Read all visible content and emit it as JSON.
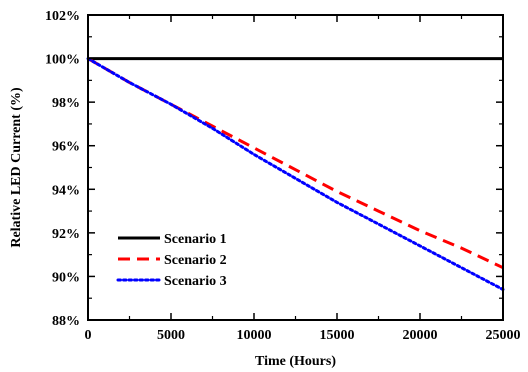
{
  "chart_data": {
    "type": "line",
    "title": "",
    "xlabel": "Time (Hours)",
    "ylabel": "Relative LED Current (%)",
    "xlim": [
      0,
      25000
    ],
    "ylim": [
      88,
      102
    ],
    "x_ticks": [
      0,
      5000,
      10000,
      15000,
      20000,
      25000
    ],
    "y_ticks": [
      88,
      90,
      92,
      94,
      96,
      98,
      100,
      102
    ],
    "x_tick_labels": [
      "0",
      "5000",
      "10000",
      "15000",
      "20000",
      "25000"
    ],
    "y_tick_labels": [
      "88%",
      "90%",
      "92%",
      "94%",
      "96%",
      "98%",
      "100%",
      "102%"
    ],
    "grid": false,
    "legend_position": "bottom-left",
    "series": [
      {
        "name": "Scenario 1",
        "color": "#000000",
        "style": "solid",
        "x": [
          0,
          25000
        ],
        "y": [
          100,
          100
        ]
      },
      {
        "name": "Scenario 2",
        "color": "#ff0000",
        "style": "dashed",
        "x": [
          0,
          2500,
          5000,
          7500,
          10000,
          12500,
          15000,
          17500,
          20000,
          22500,
          25000
        ],
        "y": [
          100,
          98.9,
          97.9,
          96.9,
          95.9,
          94.9,
          93.9,
          93.0,
          92.1,
          91.3,
          90.4
        ]
      },
      {
        "name": "Scenario 3",
        "color": "#0000ff",
        "style": "dotted",
        "x": [
          0,
          2500,
          5000,
          7500,
          10000,
          12500,
          15000,
          17500,
          20000,
          22500,
          25000
        ],
        "y": [
          100,
          98.9,
          97.9,
          96.8,
          95.6,
          94.5,
          93.4,
          92.4,
          91.4,
          90.4,
          89.4
        ]
      }
    ]
  }
}
